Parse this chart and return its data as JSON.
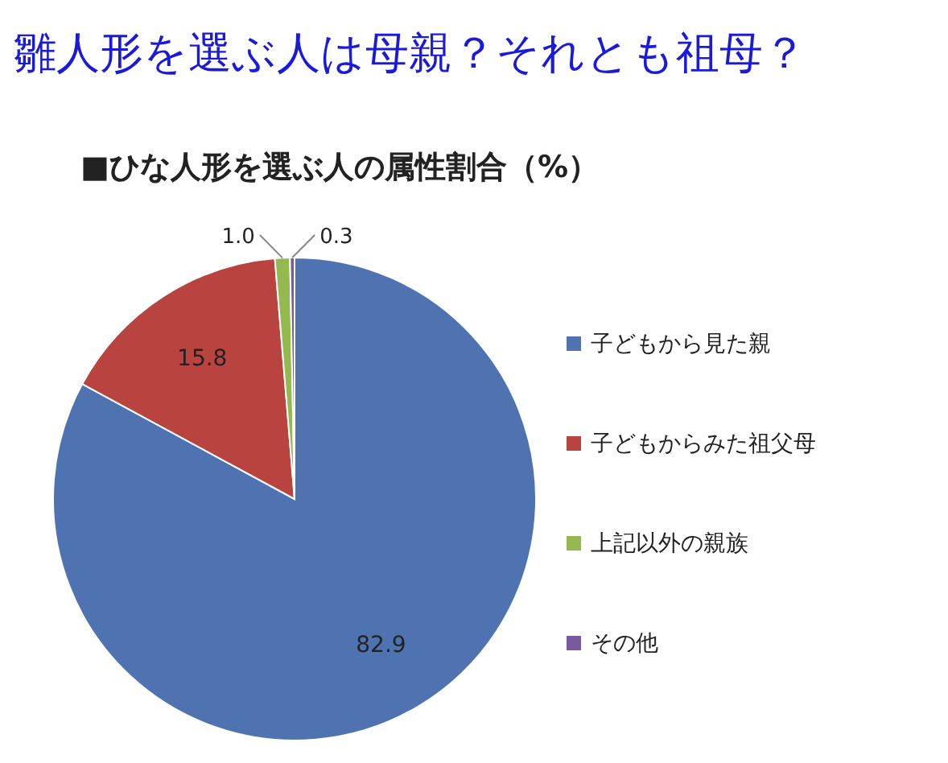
{
  "chart_data": {
    "type": "pie",
    "title": "雛人形を選ぶ人は母親？それとも祖母？",
    "subtitle": "■ひな人形を選ぶ人の属性割合（%）",
    "categories": [
      "子どもから見た親",
      "子どもからみた祖父母",
      "上記以外の親族",
      "その他"
    ],
    "values": [
      82.9,
      15.8,
      1.0,
      0.3
    ],
    "colors": [
      "#4f72b0",
      "#b8433f",
      "#93b94f",
      "#7a5a9e"
    ],
    "value_labels": [
      "82.9",
      "15.8",
      "1.0",
      "0.3"
    ],
    "legend": "right"
  }
}
